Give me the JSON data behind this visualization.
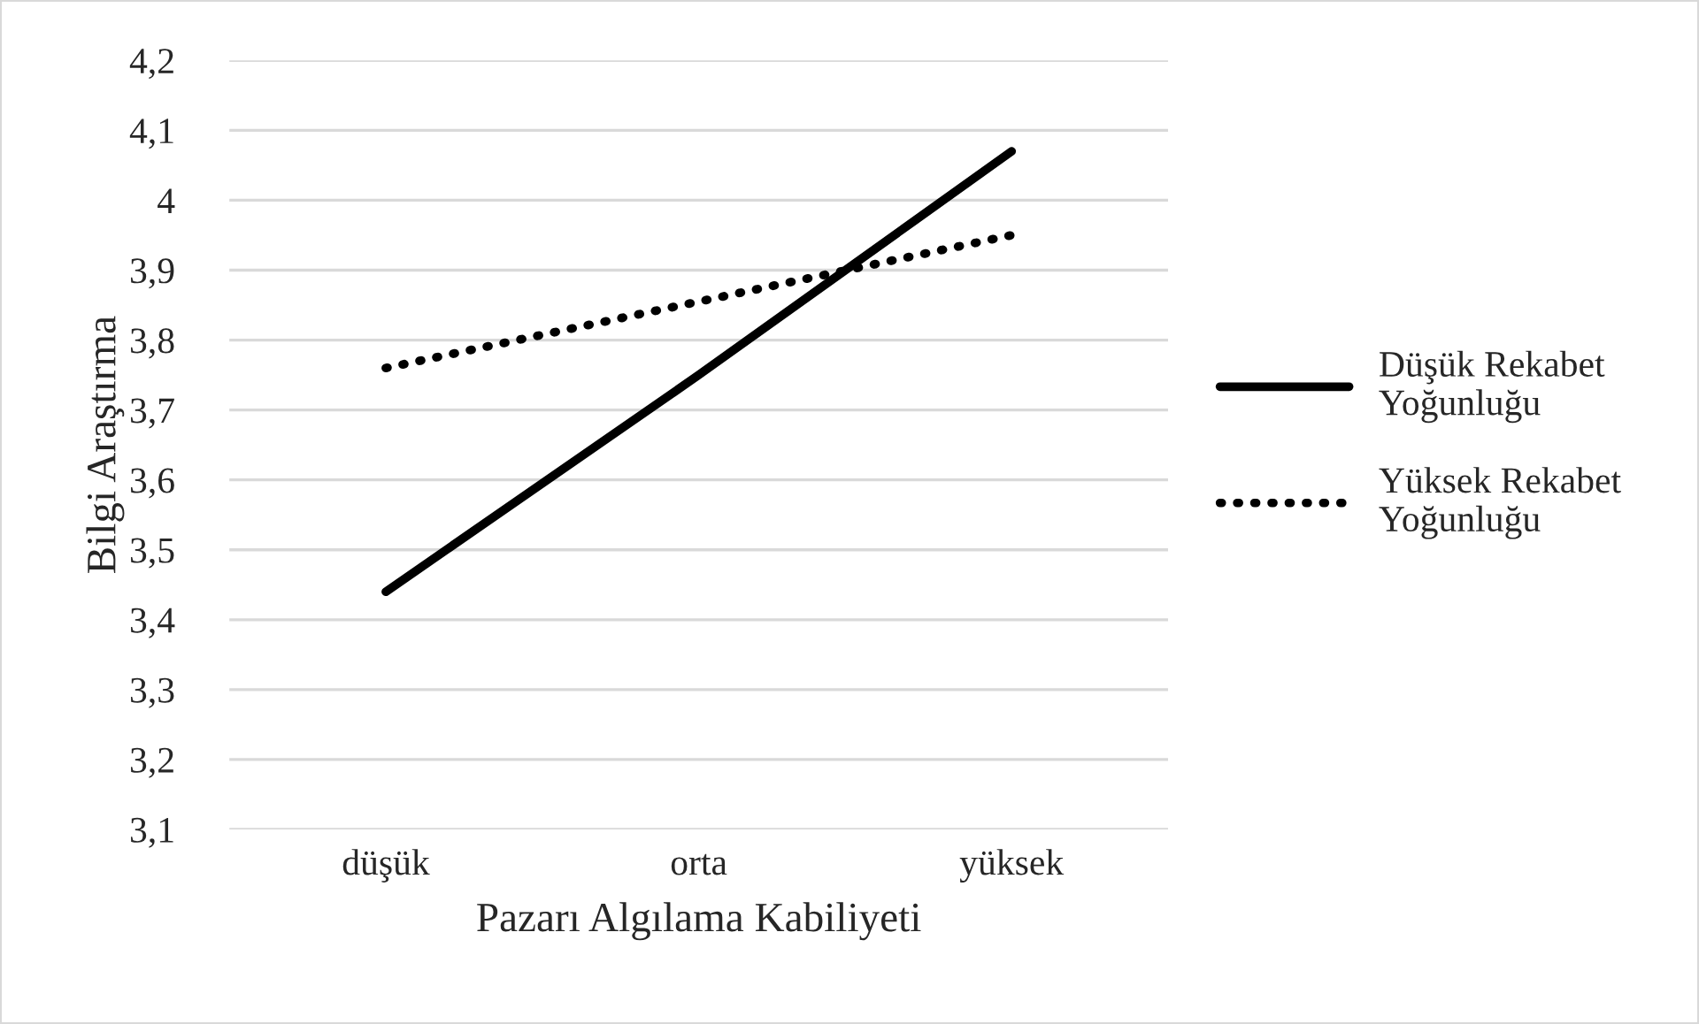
{
  "chart_data": {
    "type": "line",
    "xlabel": "Pazarı Algılama Kabiliyeti",
    "ylabel": "Bilgi Araştırma",
    "categories": [
      "düşük",
      "orta",
      "yüksek"
    ],
    "series": [
      {
        "name": "Düşük Rekabet Yoğunluğu",
        "color": "#000000",
        "line_style": "solid",
        "values": [
          3.44,
          3.75,
          4.07
        ]
      },
      {
        "name": "Yüksek Rekabet Yoğunluğu",
        "color": "#000000",
        "line_style": "dotted",
        "values": [
          3.76,
          3.855,
          3.95
        ]
      }
    ],
    "ylim": [
      3.1,
      4.2
    ],
    "yticks": [
      {
        "value": 3.1,
        "label": "3,1"
      },
      {
        "value": 3.2,
        "label": "3,2"
      },
      {
        "value": 3.3,
        "label": "3,3"
      },
      {
        "value": 3.4,
        "label": "3,4"
      },
      {
        "value": 3.5,
        "label": "3,5"
      },
      {
        "value": 3.6,
        "label": "3,6"
      },
      {
        "value": 3.7,
        "label": "3,7"
      },
      {
        "value": 3.8,
        "label": "3,8"
      },
      {
        "value": 3.9,
        "label": "3,9"
      },
      4,
      {
        "value": 4.1,
        "label": "4,1"
      },
      {
        "value": 4.2,
        "label": "4,2"
      }
    ],
    "grid": "y",
    "legend": "right",
    "marker": "none"
  }
}
